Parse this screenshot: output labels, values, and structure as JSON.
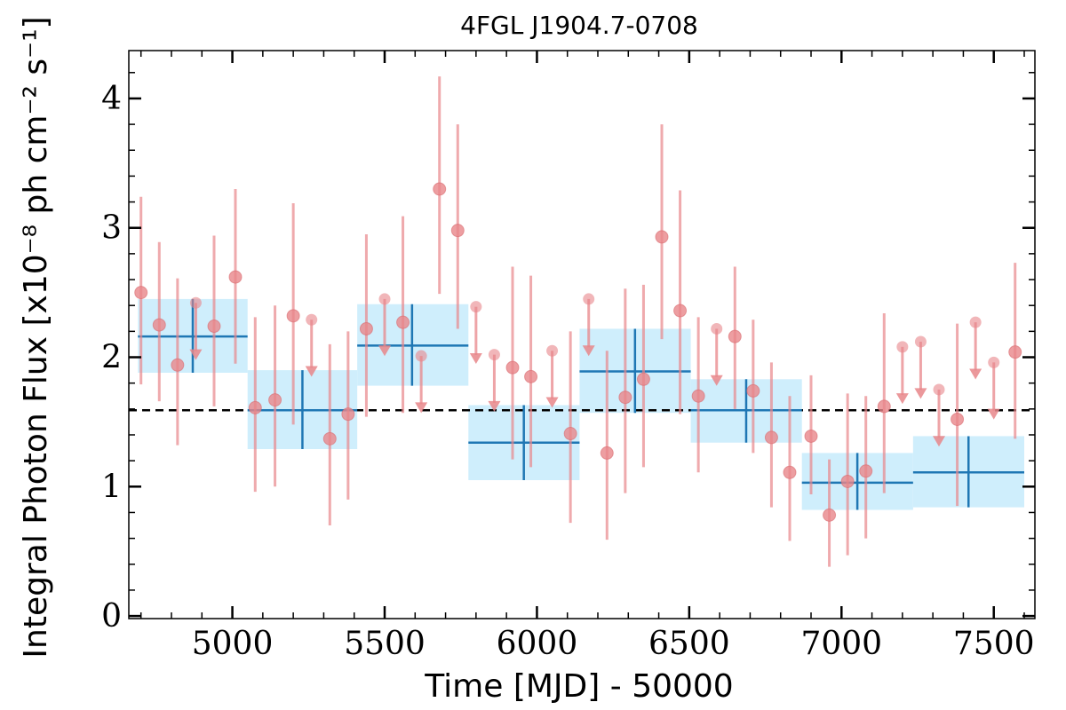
{
  "chart_data": {
    "type": "scatter",
    "title": "4FGL J1904.7-0708",
    "xlabel": "Time [MJD] - 50000",
    "ylabel": "Integral Photon Flux [x10⁻⁸ ph cm⁻² s⁻¹]",
    "xlim": [
      4660,
      7635
    ],
    "ylim": [
      -0.02,
      4.37
    ],
    "x_ticks": [
      5000,
      5500,
      6000,
      6500,
      7000,
      7500
    ],
    "y_ticks": [
      0,
      1,
      2,
      3,
      4
    ],
    "grid": false,
    "reference_line": {
      "y": 1.59,
      "style": "dashed",
      "color": "#000000"
    },
    "colors": {
      "detection": "#e8868a",
      "upper_limit": "#e8868a",
      "binned": "#1f77b4",
      "binned_band": "#cfeefc"
    },
    "detections": [
      {
        "x": 4700,
        "y": 2.5,
        "ylo": 1.79,
        "yhi": 3.24
      },
      {
        "x": 4760,
        "y": 2.25,
        "ylo": 1.66,
        "yhi": 2.89
      },
      {
        "x": 4820,
        "y": 1.94,
        "ylo": 1.32,
        "yhi": 2.61
      },
      {
        "x": 4940,
        "y": 2.24,
        "ylo": 1.62,
        "yhi": 2.94
      },
      {
        "x": 5010,
        "y": 2.62,
        "ylo": 1.95,
        "yhi": 3.3
      },
      {
        "x": 5075,
        "y": 1.61,
        "ylo": 0.96,
        "yhi": 2.31
      },
      {
        "x": 5140,
        "y": 1.67,
        "ylo": 1.0,
        "yhi": 2.4
      },
      {
        "x": 5200,
        "y": 2.32,
        "ylo": 1.48,
        "yhi": 3.19
      },
      {
        "x": 5320,
        "y": 1.37,
        "ylo": 0.7,
        "yhi": 2.1
      },
      {
        "x": 5380,
        "y": 1.56,
        "ylo": 0.9,
        "yhi": 2.2
      },
      {
        "x": 5440,
        "y": 2.22,
        "ylo": 1.54,
        "yhi": 2.95
      },
      {
        "x": 5560,
        "y": 2.27,
        "ylo": 1.57,
        "yhi": 3.09
      },
      {
        "x": 5680,
        "y": 3.3,
        "ylo": 2.49,
        "yhi": 4.17
      },
      {
        "x": 5740,
        "y": 2.98,
        "ylo": 2.22,
        "yhi": 3.8
      },
      {
        "x": 5920,
        "y": 1.92,
        "ylo": 1.21,
        "yhi": 2.7
      },
      {
        "x": 5980,
        "y": 1.85,
        "ylo": 1.15,
        "yhi": 2.63
      },
      {
        "x": 6110,
        "y": 1.41,
        "ylo": 0.72,
        "yhi": 2.2
      },
      {
        "x": 6230,
        "y": 1.26,
        "ylo": 0.59,
        "yhi": 2.05
      },
      {
        "x": 6290,
        "y": 1.69,
        "ylo": 0.95,
        "yhi": 2.53
      },
      {
        "x": 6350,
        "y": 1.83,
        "ylo": 1.15,
        "yhi": 2.56
      },
      {
        "x": 6410,
        "y": 2.93,
        "ylo": 2.14,
        "yhi": 3.8
      },
      {
        "x": 6470,
        "y": 2.36,
        "ylo": 1.56,
        "yhi": 3.29
      },
      {
        "x": 6530,
        "y": 1.7,
        "ylo": 1.11,
        "yhi": 2.31
      },
      {
        "x": 6650,
        "y": 2.16,
        "ylo": 1.6,
        "yhi": 2.7
      },
      {
        "x": 6710,
        "y": 1.74,
        "ylo": 1.26,
        "yhi": 2.29
      },
      {
        "x": 6770,
        "y": 1.38,
        "ylo": 0.84,
        "yhi": 1.96
      },
      {
        "x": 6830,
        "y": 1.11,
        "ylo": 0.58,
        "yhi": 1.7
      },
      {
        "x": 6900,
        "y": 1.39,
        "ylo": 0.94,
        "yhi": 1.86
      },
      {
        "x": 6960,
        "y": 0.78,
        "ylo": 0.38,
        "yhi": 1.21
      },
      {
        "x": 7020,
        "y": 1.04,
        "ylo": 0.47,
        "yhi": 1.72
      },
      {
        "x": 7080,
        "y": 1.12,
        "ylo": 0.6,
        "yhi": 1.7
      },
      {
        "x": 7140,
        "y": 1.62,
        "ylo": 0.95,
        "yhi": 2.34
      },
      {
        "x": 7380,
        "y": 1.52,
        "ylo": 0.85,
        "yhi": 2.26
      },
      {
        "x": 7570,
        "y": 2.04,
        "ylo": 1.37,
        "yhi": 2.73
      }
    ],
    "upper_limits": [
      {
        "x": 4880,
        "y": 2.42
      },
      {
        "x": 5260,
        "y": 2.29
      },
      {
        "x": 5500,
        "y": 2.45
      },
      {
        "x": 5620,
        "y": 2.01
      },
      {
        "x": 5800,
        "y": 2.39
      },
      {
        "x": 5860,
        "y": 2.02
      },
      {
        "x": 6050,
        "y": 2.05
      },
      {
        "x": 6170,
        "y": 2.45
      },
      {
        "x": 6590,
        "y": 2.22
      },
      {
        "x": 7200,
        "y": 2.08
      },
      {
        "x": 7260,
        "y": 2.12
      },
      {
        "x": 7320,
        "y": 1.75
      },
      {
        "x": 7440,
        "y": 2.27
      },
      {
        "x": 7500,
        "y": 1.96
      }
    ],
    "binned": [
      {
        "x0": 4690,
        "x1": 5050,
        "x": 4870,
        "y": 2.16,
        "ylo": 1.88,
        "yhi": 2.45
      },
      {
        "x0": 5050,
        "x1": 5410,
        "x": 5230,
        "y": 1.59,
        "ylo": 1.29,
        "yhi": 1.9
      },
      {
        "x0": 5410,
        "x1": 5775,
        "x": 5590,
        "y": 2.09,
        "ylo": 1.78,
        "yhi": 2.41
      },
      {
        "x0": 5775,
        "x1": 6140,
        "x": 5957,
        "y": 1.34,
        "ylo": 1.05,
        "yhi": 1.63
      },
      {
        "x0": 6140,
        "x1": 6505,
        "x": 6322,
        "y": 1.89,
        "ylo": 1.57,
        "yhi": 2.22
      },
      {
        "x0": 6505,
        "x1": 6870,
        "x": 6687,
        "y": 1.59,
        "ylo": 1.34,
        "yhi": 1.83
      },
      {
        "x0": 6870,
        "x1": 7235,
        "x": 7052,
        "y": 1.03,
        "ylo": 0.82,
        "yhi": 1.26
      },
      {
        "x0": 7235,
        "x1": 7600,
        "x": 7417,
        "y": 1.11,
        "ylo": 0.84,
        "yhi": 1.39
      }
    ]
  }
}
